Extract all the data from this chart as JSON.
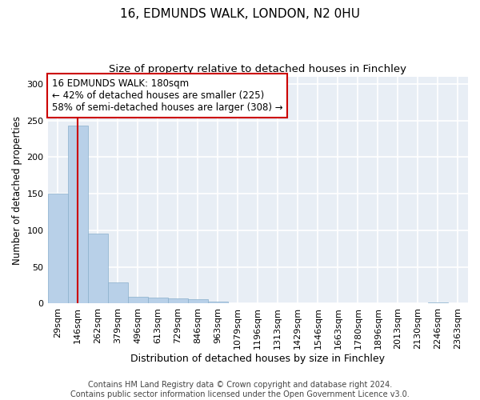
{
  "title_line1": "16, EDMUNDS WALK, LONDON, N2 0HU",
  "title_line2": "Size of property relative to detached houses in Finchley",
  "xlabel": "Distribution of detached houses by size in Finchley",
  "ylabel": "Number of detached properties",
  "bar_labels": [
    "29sqm",
    "146sqm",
    "262sqm",
    "379sqm",
    "496sqm",
    "613sqm",
    "729sqm",
    "846sqm",
    "963sqm",
    "1079sqm",
    "1196sqm",
    "1313sqm",
    "1429sqm",
    "1546sqm",
    "1663sqm",
    "1780sqm",
    "1896sqm",
    "2013sqm",
    "2130sqm",
    "2246sqm",
    "2363sqm"
  ],
  "bar_heights": [
    150,
    243,
    95,
    29,
    9,
    8,
    7,
    6,
    3,
    0,
    0,
    0,
    0,
    0,
    0,
    0,
    0,
    0,
    0,
    2,
    0
  ],
  "bar_color": "#b8d0e8",
  "bar_edge_color": "#8ab0cc",
  "vline_x": 1.0,
  "vline_color": "#cc0000",
  "annotation_text": "16 EDMUNDS WALK: 180sqm\n← 42% of detached houses are smaller (225)\n58% of semi-detached houses are larger (308) →",
  "annotation_box_color": "#ffffff",
  "annotation_box_edge_color": "#cc0000",
  "ylim": [
    0,
    310
  ],
  "yticks": [
    0,
    50,
    100,
    150,
    200,
    250,
    300
  ],
  "background_color": "#e8eef5",
  "grid_color": "#ffffff",
  "footer_text": "Contains HM Land Registry data © Crown copyright and database right 2024.\nContains public sector information licensed under the Open Government Licence v3.0.",
  "title_fontsize": 11,
  "subtitle_fontsize": 9.5,
  "annotation_fontsize": 8.5,
  "footer_fontsize": 7,
  "ylabel_fontsize": 8.5,
  "xlabel_fontsize": 9
}
